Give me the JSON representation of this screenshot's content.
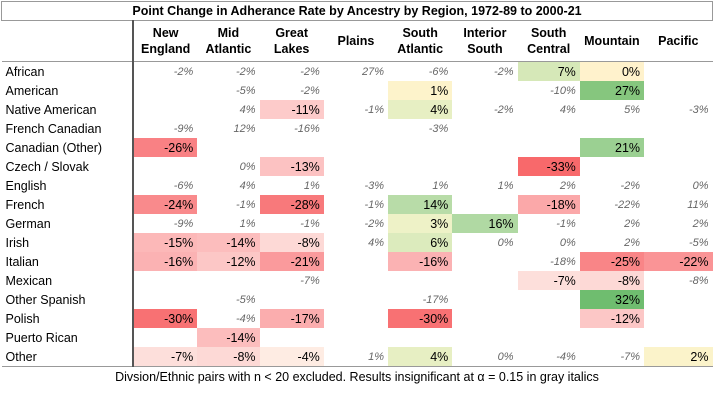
{
  "title": "Point Change in Adherance Rate by Ancestry by Region, 1972-89 to 2000-21",
  "table": {
    "columns": [
      "New England",
      "Mid Atlantic",
      "Great Lakes",
      "Plains",
      "South Atlantic",
      "Interior South",
      "South Central",
      "Mountain",
      "Pacific"
    ],
    "rows": [
      {
        "label": "African",
        "cells": [
          "-2%",
          "-2%",
          "-2%",
          "27%",
          "-6%",
          "-2%",
          {
            "text": "7%",
            "fill": "#d6e8b8"
          },
          {
            "text": "0%",
            "fill": "#fff2cc"
          },
          null
        ]
      },
      {
        "label": "American",
        "cells": [
          null,
          "-5%",
          "-2%",
          null,
          {
            "text": "1%",
            "fill": "#fdf3cb"
          },
          null,
          "-10%",
          {
            "text": "27%",
            "fill": "#86c67e"
          },
          null
        ]
      },
      {
        "label": "Native American",
        "cells": [
          null,
          "4%",
          {
            "text": "-11%",
            "fill": "#fdcbca"
          },
          "-1%",
          {
            "text": "4%",
            "fill": "#e7efc3"
          },
          "-2%",
          "4%",
          "5%",
          "-3%"
        ]
      },
      {
        "label": "French Canadian",
        "cells": [
          "-9%",
          "12%",
          "-16%",
          null,
          "-3%",
          null,
          null,
          null,
          null
        ]
      },
      {
        "label": "Canadian (Other)",
        "cells": [
          {
            "text": "-26%",
            "fill": "#f98184"
          },
          null,
          null,
          null,
          null,
          null,
          null,
          {
            "text": "21%",
            "fill": "#9bd092"
          },
          null
        ]
      },
      {
        "label": "Czech / Slovak",
        "cells": [
          null,
          "0%",
          {
            "text": "-13%",
            "fill": "#fcc2c2"
          },
          null,
          null,
          null,
          {
            "text": "-33%",
            "fill": "#f8696b"
          },
          null,
          null
        ]
      },
      {
        "label": "English",
        "cells": [
          "-6%",
          "4%",
          "1%",
          "-3%",
          "1%",
          "1%",
          "2%",
          "-2%",
          "0%"
        ]
      },
      {
        "label": "French",
        "cells": [
          {
            "text": "-24%",
            "fill": "#f98a8c"
          },
          "-1%",
          {
            "text": "-28%",
            "fill": "#f8797b"
          },
          "-1%",
          {
            "text": "14%",
            "fill": "#b8dca8"
          },
          null,
          {
            "text": "-18%",
            "fill": "#fba8a9"
          },
          "-22%",
          "11%"
        ]
      },
      {
        "label": "German",
        "cells": [
          "-9%",
          "1%",
          "-1%",
          "-2%",
          {
            "text": "3%",
            "fill": "#eef2c7"
          },
          {
            "text": "16%",
            "fill": "#b0d9a3"
          },
          "-1%",
          "2%",
          "2%"
        ]
      },
      {
        "label": "Irish",
        "cells": [
          {
            "text": "-15%",
            "fill": "#fcb8b8"
          },
          {
            "text": "-14%",
            "fill": "#fcbdbd"
          },
          {
            "text": "-8%",
            "fill": "#fdd9d6"
          },
          "4%",
          {
            "text": "6%",
            "fill": "#dcebbd"
          },
          "0%",
          "0%",
          "2%",
          "-5%"
        ]
      },
      {
        "label": "Italian",
        "cells": [
          {
            "text": "-16%",
            "fill": "#fbb2b3"
          },
          {
            "text": "-12%",
            "fill": "#fcc7c6"
          },
          {
            "text": "-21%",
            "fill": "#fa9a9c"
          },
          null,
          {
            "text": "-16%",
            "fill": "#fbb2b3"
          },
          null,
          "-18%",
          {
            "text": "-25%",
            "fill": "#f98587"
          },
          {
            "text": "-22%",
            "fill": "#fa9496"
          }
        ]
      },
      {
        "label": "Mexican",
        "cells": [
          null,
          null,
          "-7%",
          null,
          null,
          null,
          {
            "text": "-7%",
            "fill": "#fddfdb"
          },
          {
            "text": "-8%",
            "fill": "#fdd9d6"
          },
          "-8%"
        ]
      },
      {
        "label": "Other Spanish",
        "cells": [
          null,
          "-5%",
          null,
          null,
          "-17%",
          null,
          null,
          {
            "text": "32%",
            "fill": "#6fbd6f"
          },
          null
        ]
      },
      {
        "label": "Polish",
        "cells": [
          {
            "text": "-30%",
            "fill": "#f87173"
          },
          "-4%",
          {
            "text": "-17%",
            "fill": "#fbadae"
          },
          null,
          {
            "text": "-30%",
            "fill": "#f87173"
          },
          null,
          null,
          {
            "text": "-12%",
            "fill": "#fcc7c6"
          },
          null
        ]
      },
      {
        "label": "Puerto Rican",
        "cells": [
          null,
          {
            "text": "-14%",
            "fill": "#fcbdbd"
          },
          null,
          null,
          null,
          null,
          null,
          null,
          null
        ]
      },
      {
        "label": "Other",
        "cells": [
          {
            "text": "-7%",
            "fill": "#fddfdb"
          },
          {
            "text": "-8%",
            "fill": "#fdd9d6"
          },
          {
            "text": "-4%",
            "fill": "#feece3"
          },
          "1%",
          {
            "text": "4%",
            "fill": "#e7efc3"
          },
          "0%",
          "-4%",
          "-7%",
          {
            "text": "2%",
            "fill": "#fbf3ca"
          }
        ]
      }
    ]
  },
  "footer": "Divsion/Ethnic pairs with n < 20 excluded. Results insignificant at α = 0.15 in gray italics"
}
